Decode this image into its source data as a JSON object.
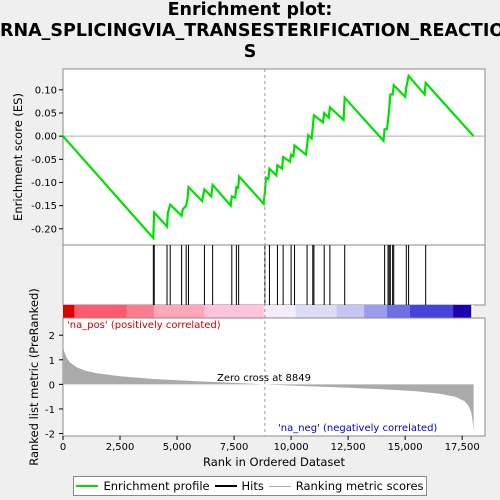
{
  "title_line1": "Enrichment plot:",
  "title_line2": "RNA_SPLICINGVIA_TRANSESTERIFICATION_REACTION",
  "title_line3": "S",
  "colors": {
    "es_line": "#00e000",
    "hits": "#000000",
    "zero_line": "#999999",
    "ranked_fill": "#aaaaaa"
  },
  "chart_data": [
    {
      "type": "line",
      "name": "enrichment-profile",
      "ylabel": "Enrichment score (ES)",
      "xlim": [
        0,
        18500
      ],
      "ylim": [
        -0.235,
        0.145
      ],
      "yticks": [
        -0.2,
        -0.15,
        -0.1,
        -0.05,
        0.0,
        0.05,
        0.1
      ],
      "ytick_labels": [
        "-0.20",
        "-0.15",
        "-0.10",
        "-0.05",
        "0.00",
        "0.05",
        "0.10"
      ],
      "es_points": [
        [
          0,
          0.0
        ],
        [
          3960,
          -0.22
        ],
        [
          3980,
          -0.185
        ],
        [
          4000,
          -0.165
        ],
        [
          4560,
          -0.195
        ],
        [
          4600,
          -0.165
        ],
        [
          4700,
          -0.148
        ],
        [
          5200,
          -0.172
        ],
        [
          5250,
          -0.158
        ],
        [
          5400,
          -0.15
        ],
        [
          5460,
          -0.135
        ],
        [
          5500,
          -0.11
        ],
        [
          6100,
          -0.14
        ],
        [
          6200,
          -0.115
        ],
        [
          6500,
          -0.13
        ],
        [
          6560,
          -0.105
        ],
        [
          7350,
          -0.15
        ],
        [
          7400,
          -0.13
        ],
        [
          7550,
          -0.133
        ],
        [
          7600,
          -0.11
        ],
        [
          7680,
          -0.112
        ],
        [
          7720,
          -0.087
        ],
        [
          8800,
          -0.146
        ],
        [
          8850,
          -0.12
        ],
        [
          8900,
          -0.09
        ],
        [
          9000,
          -0.093
        ],
        [
          9050,
          -0.07
        ],
        [
          9350,
          -0.085
        ],
        [
          9400,
          -0.063
        ],
        [
          9600,
          -0.07
        ],
        [
          9650,
          -0.045
        ],
        [
          9950,
          -0.055
        ],
        [
          10000,
          -0.04
        ],
        [
          10100,
          -0.043
        ],
        [
          10150,
          -0.02
        ],
        [
          10650,
          -0.04
        ],
        [
          10700,
          -0.02
        ],
        [
          10750,
          0.002
        ],
        [
          10900,
          -0.005
        ],
        [
          10950,
          0.02
        ],
        [
          11000,
          0.045
        ],
        [
          11400,
          0.03
        ],
        [
          11450,
          0.05
        ],
        [
          11650,
          0.04
        ],
        [
          11700,
          0.062
        ],
        [
          12300,
          0.035
        ],
        [
          12350,
          0.083
        ],
        [
          14050,
          -0.01
        ],
        [
          14100,
          0.015
        ],
        [
          14200,
          0.015
        ],
        [
          14250,
          0.035
        ],
        [
          14300,
          0.06
        ],
        [
          14350,
          0.09
        ],
        [
          14450,
          0.09
        ],
        [
          14500,
          0.11
        ],
        [
          15000,
          0.085
        ],
        [
          15050,
          0.105
        ],
        [
          15150,
          0.13
        ],
        [
          15850,
          0.09
        ],
        [
          15900,
          0.115
        ],
        [
          18000,
          0.0
        ]
      ]
    },
    {
      "type": "scatter",
      "name": "hits",
      "hit_ranks": [
        3960,
        4000,
        4560,
        4700,
        5200,
        5400,
        5500,
        6200,
        6560,
        7400,
        7600,
        7700,
        8850,
        9050,
        9400,
        9650,
        10000,
        10150,
        10700,
        10950,
        11000,
        11450,
        11700,
        12350,
        14100,
        14250,
        14300,
        14350,
        14450,
        14500,
        15050,
        15150,
        15900
      ]
    },
    {
      "type": "area",
      "name": "ranked-list-metric",
      "ylabel": "Ranked list metric (PreRanked)",
      "xlabel": "Rank in Ordered Dataset",
      "xlim": [
        0,
        18500
      ],
      "ylim": [
        -2.1,
        2.7
      ],
      "yticks": [
        -2,
        -1,
        0,
        1,
        2
      ],
      "ytick_labels": [
        "-2",
        "-1",
        "0",
        "1",
        "2"
      ],
      "xticks": [
        0,
        2500,
        5000,
        7500,
        10000,
        12500,
        15000,
        17500
      ],
      "xtick_labels": [
        "0",
        "2,500",
        "5,000",
        "7,500",
        "10,000",
        "12,500",
        "15,000",
        "17,500"
      ],
      "metric_points": [
        [
          0,
          1.65
        ],
        [
          50,
          1.35
        ],
        [
          150,
          1.1
        ],
        [
          300,
          0.9
        ],
        [
          600,
          0.7
        ],
        [
          1000,
          0.55
        ],
        [
          1500,
          0.45
        ],
        [
          2500,
          0.33
        ],
        [
          4000,
          0.22
        ],
        [
          6000,
          0.12
        ],
        [
          8000,
          0.04
        ],
        [
          8849,
          0.0
        ],
        [
          10000,
          -0.05
        ],
        [
          12000,
          -0.12
        ],
        [
          14000,
          -0.2
        ],
        [
          15500,
          -0.28
        ],
        [
          16500,
          -0.38
        ],
        [
          17200,
          -0.5
        ],
        [
          17600,
          -0.68
        ],
        [
          17800,
          -0.9
        ],
        [
          17900,
          -1.15
        ],
        [
          17950,
          -1.45
        ],
        [
          18000,
          -1.9
        ]
      ],
      "zero_cross": 8849,
      "zero_cross_label": "Zero cross at 8849",
      "pos_label": "'na_pos' (positively correlated)",
      "neg_label": "'na_neg' (negatively correlated)"
    }
  ],
  "legend": {
    "position": "bottom",
    "items": [
      {
        "label": "Enrichment profile",
        "color": "#00e000"
      },
      {
        "label": "Hits",
        "color": "#000000"
      },
      {
        "label": "Ranking metric scores",
        "color": "#aaaaaa"
      }
    ]
  }
}
